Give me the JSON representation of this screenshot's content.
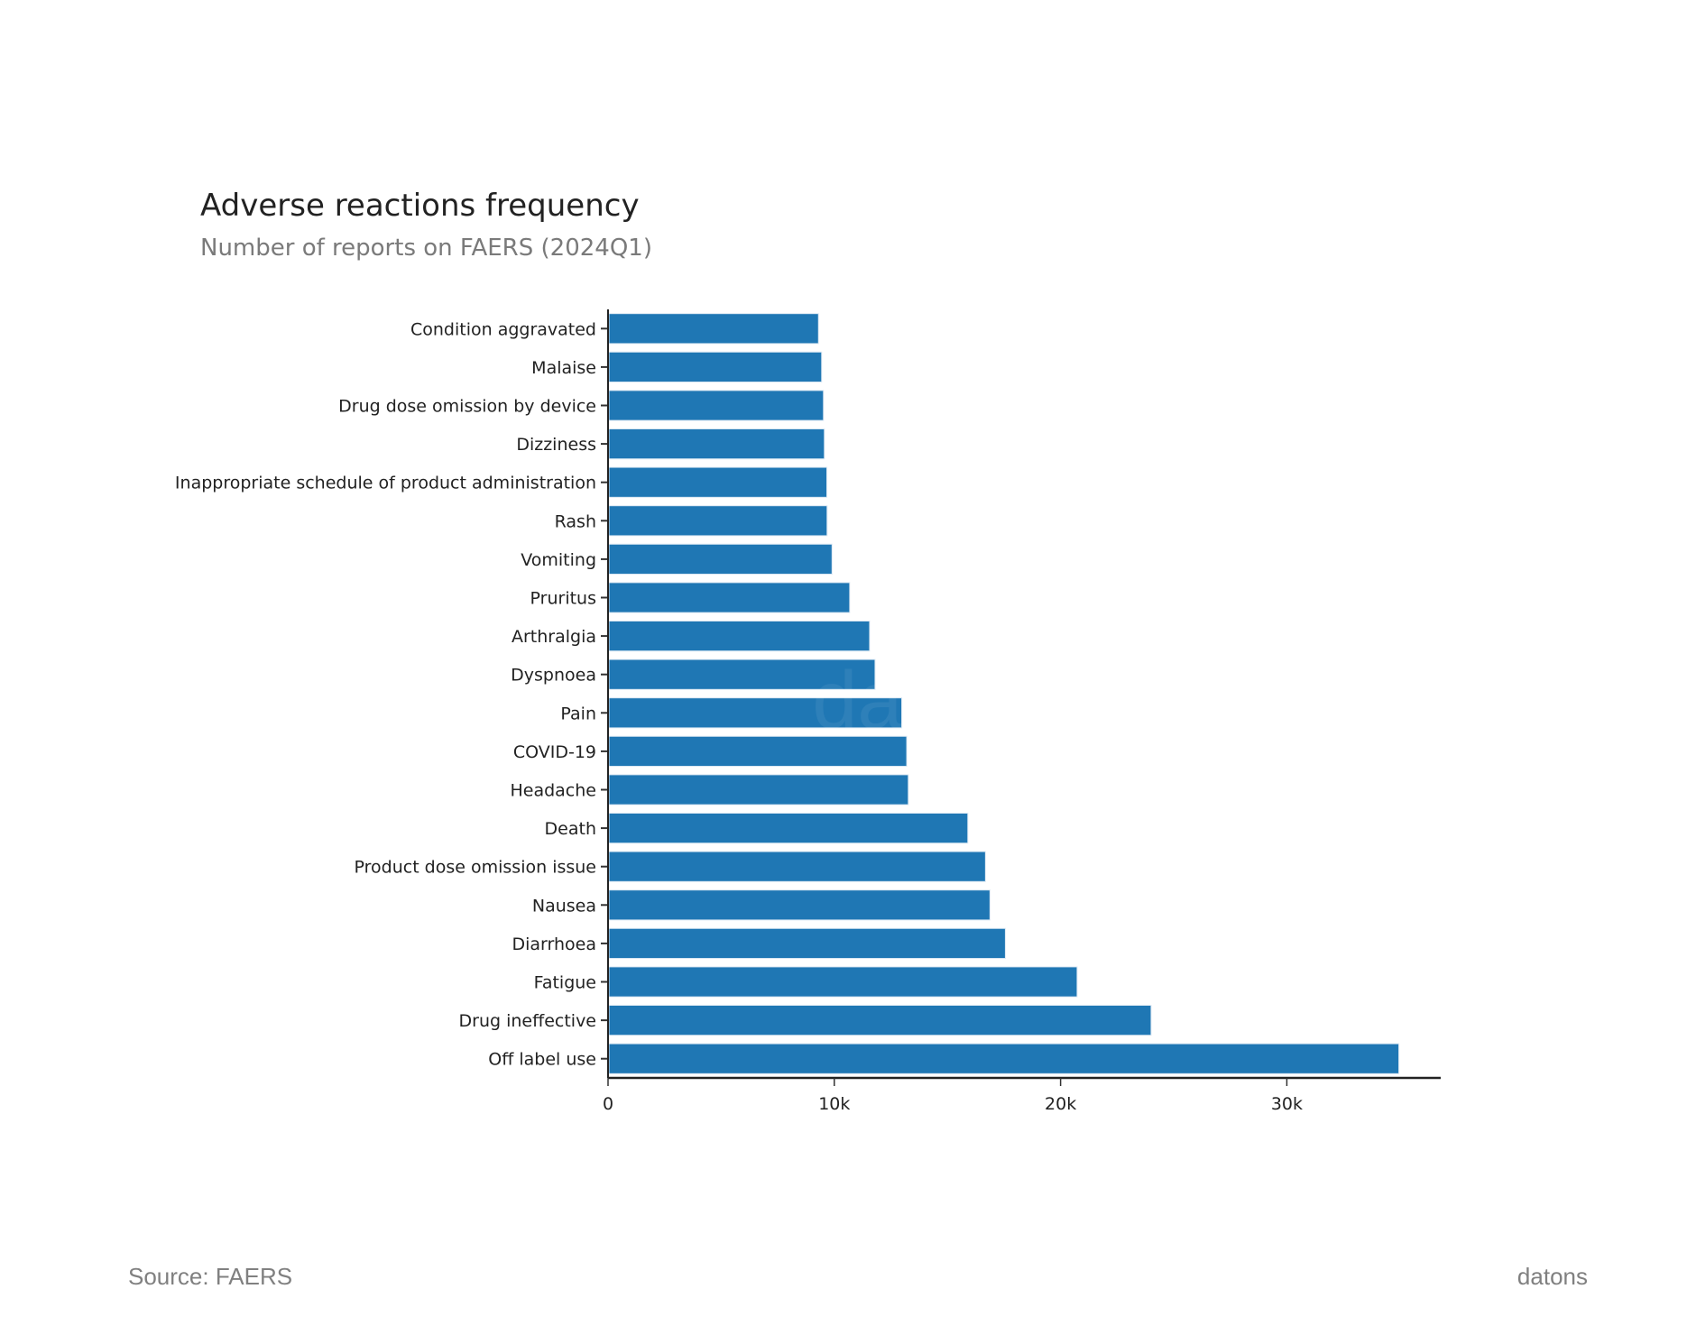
{
  "chart_data": {
    "type": "bar",
    "orientation": "horizontal",
    "title": "Adverse reactions frequency",
    "subtitle": "Number of reports on FAERS (2024Q1)",
    "categories": [
      "Condition aggravated",
      "Malaise",
      "Drug dose omission by device",
      "Dizziness",
      "Inappropriate schedule of product administration",
      "Rash",
      "Vomiting",
      "Pruritus",
      "Arthralgia",
      "Dyspnoea",
      "Pain",
      "COVID-19",
      "Headache",
      "Death",
      "Product dose omission issue",
      "Nausea",
      "Diarrhoea",
      "Fatigue",
      "Drug ineffective",
      "Off label use"
    ],
    "values": [
      9300,
      9440,
      9520,
      9560,
      9670,
      9680,
      9900,
      10680,
      11560,
      11800,
      12980,
      13200,
      13270,
      15900,
      16680,
      16880,
      17560,
      20730,
      24000,
      34950
    ],
    "xlim": [
      0,
      36800
    ],
    "xticks": [
      0,
      10000,
      20000,
      30000
    ],
    "xtick_labels": [
      "0",
      "10k",
      "20k",
      "30k"
    ],
    "xlabel": "",
    "ylabel": "",
    "grid": false,
    "bar_color": "#1f77b4",
    "watermark": "datons"
  },
  "footer": {
    "source": "Source: FAERS",
    "brand": "datons"
  }
}
